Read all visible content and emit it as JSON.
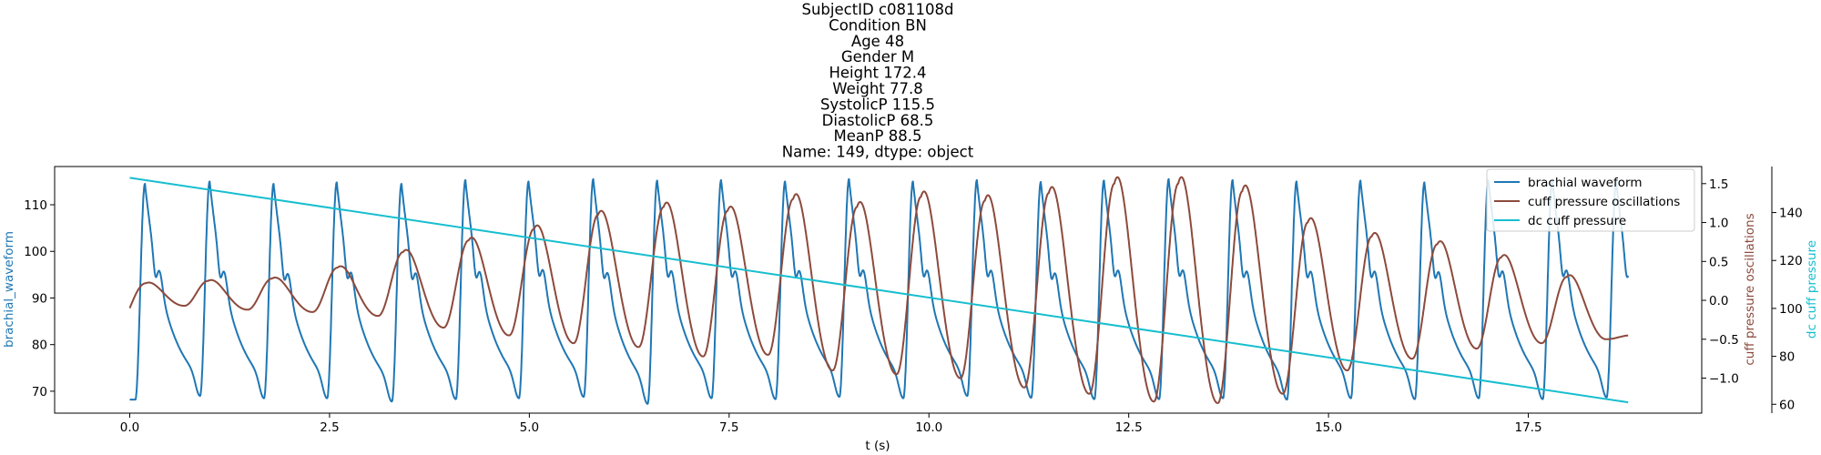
{
  "chart_data": {
    "type": "line",
    "title_lines": [
      "SubjectID     c081108d",
      "Condition            BN",
      "Age                    48",
      "Gender                  M",
      "Height             172.4",
      "Weight               77.8",
      "SystolicP         115.5",
      "DiastolicP         68.5",
      "MeanP               88.5",
      "Name: 149, dtype: object"
    ],
    "xlabel": "t (s)",
    "xlim": [
      -0.94,
      19.67
    ],
    "x_ticks": [
      0.0,
      2.5,
      5.0,
      7.5,
      10.0,
      12.5,
      15.0,
      17.5
    ],
    "x_tick_labels": [
      "0.0",
      "2.5",
      "5.0",
      "7.5",
      "10.0",
      "12.5",
      "15.0",
      "17.5"
    ],
    "axes": {
      "left": {
        "label": "brachial_waveform",
        "color": "#1f77b4",
        "ylim": [
          65.3,
          118.2
        ],
        "ticks": [
          70,
          80,
          90,
          100,
          110
        ],
        "tick_labels": [
          "70",
          "80",
          "90",
          "100",
          "110"
        ]
      },
      "right1": {
        "label": "cuff pressure oscillations",
        "color": "#8c4a3c",
        "ylim": [
          -1.45,
          1.72
        ],
        "ticks": [
          -1.0,
          -0.5,
          0.0,
          0.5,
          1.0,
          1.5
        ],
        "tick_labels": [
          "−1.0",
          "−0.5",
          "0.0",
          "0.5",
          "1.0",
          "1.5"
        ]
      },
      "right2": {
        "label": "dc cuff pressure",
        "color": "#17becf",
        "ylim": [
          56.3,
          159.2
        ],
        "ticks": [
          60,
          80,
          100,
          120,
          140
        ],
        "tick_labels": [
          "60",
          "80",
          "100",
          "120",
          "140"
        ]
      }
    },
    "series": [
      {
        "name": "brachial waveform",
        "axis": "left",
        "color": "#1f77b4",
        "kind": "periodic_pulse",
        "t_start": 0.0,
        "t_end": 18.75,
        "beat_onsets": [
          0.07,
          0.88,
          1.68,
          2.47,
          3.28,
          4.08,
          4.87,
          5.68,
          6.48,
          7.28,
          8.08,
          8.88,
          9.68,
          10.48,
          11.28,
          12.07,
          12.88,
          13.68,
          14.48,
          15.28,
          16.08,
          16.88,
          17.68,
          18.48
        ],
        "beat_peaks": [
          114.5,
          115.0,
          114.5,
          114.8,
          114.5,
          115.3,
          115.0,
          115.5,
          115.2,
          115.3,
          115.0,
          115.5,
          115.0,
          115.3,
          114.9,
          115.2,
          115.5,
          115.3,
          115.0,
          115.2,
          114.8,
          115.3,
          115.3,
          115.0
        ],
        "beat_troughs": [
          68.2,
          69.0,
          68.5,
          68.5,
          67.8,
          68.3,
          68.5,
          68.8,
          67.3,
          68.5,
          68.3,
          68.8,
          68.5,
          69.0,
          68.6,
          68.3,
          68.3,
          68.5,
          68.2,
          68.5,
          68.3,
          68.5,
          68.3,
          68.7
        ]
      },
      {
        "name": "cuff pressure oscillations",
        "axis": "right1",
        "color": "#8c4a3c",
        "kind": "oscillation",
        "t_start": 0.0,
        "t_end": 18.75,
        "peak_times": [
          0.2,
          0.98,
          1.78,
          2.6,
          3.42,
          4.24,
          5.06,
          5.86,
          6.68,
          7.48,
          8.3,
          9.1,
          9.9,
          10.7,
          11.5,
          12.32,
          13.12,
          13.92,
          14.74,
          15.54,
          16.36,
          17.16,
          17.98
        ],
        "peak_values": [
          0.22,
          0.25,
          0.28,
          0.42,
          0.62,
          0.77,
          0.92,
          1.1,
          1.2,
          1.15,
          1.3,
          1.2,
          1.33,
          1.28,
          1.38,
          1.5,
          1.5,
          1.4,
          1.0,
          0.82,
          0.72,
          0.55,
          0.3
        ],
        "trough_values": [
          -0.07,
          -0.12,
          -0.15,
          -0.2,
          -0.35,
          -0.45,
          -0.55,
          -0.6,
          -0.72,
          -0.7,
          -0.9,
          -0.95,
          -1.0,
          -1.12,
          -1.2,
          -1.3,
          -1.32,
          -1.2,
          -0.9,
          -0.75,
          -0.62,
          -0.55,
          -0.5
        ],
        "end_value": -0.45
      },
      {
        "name": "dc cuff pressure",
        "axis": "right2",
        "color": "#17becf",
        "kind": "linear",
        "x": [
          0.0,
          18.75
        ],
        "y": [
          154.5,
          60.8
        ]
      }
    ],
    "legend": {
      "position": "top-right",
      "entries": [
        {
          "label": "brachial waveform",
          "color": "#1f77b4"
        },
        {
          "label": "cuff pressure oscillations",
          "color": "#8c4a3c"
        },
        {
          "label": "dc cuff pressure",
          "color": "#17becf"
        }
      ]
    }
  }
}
